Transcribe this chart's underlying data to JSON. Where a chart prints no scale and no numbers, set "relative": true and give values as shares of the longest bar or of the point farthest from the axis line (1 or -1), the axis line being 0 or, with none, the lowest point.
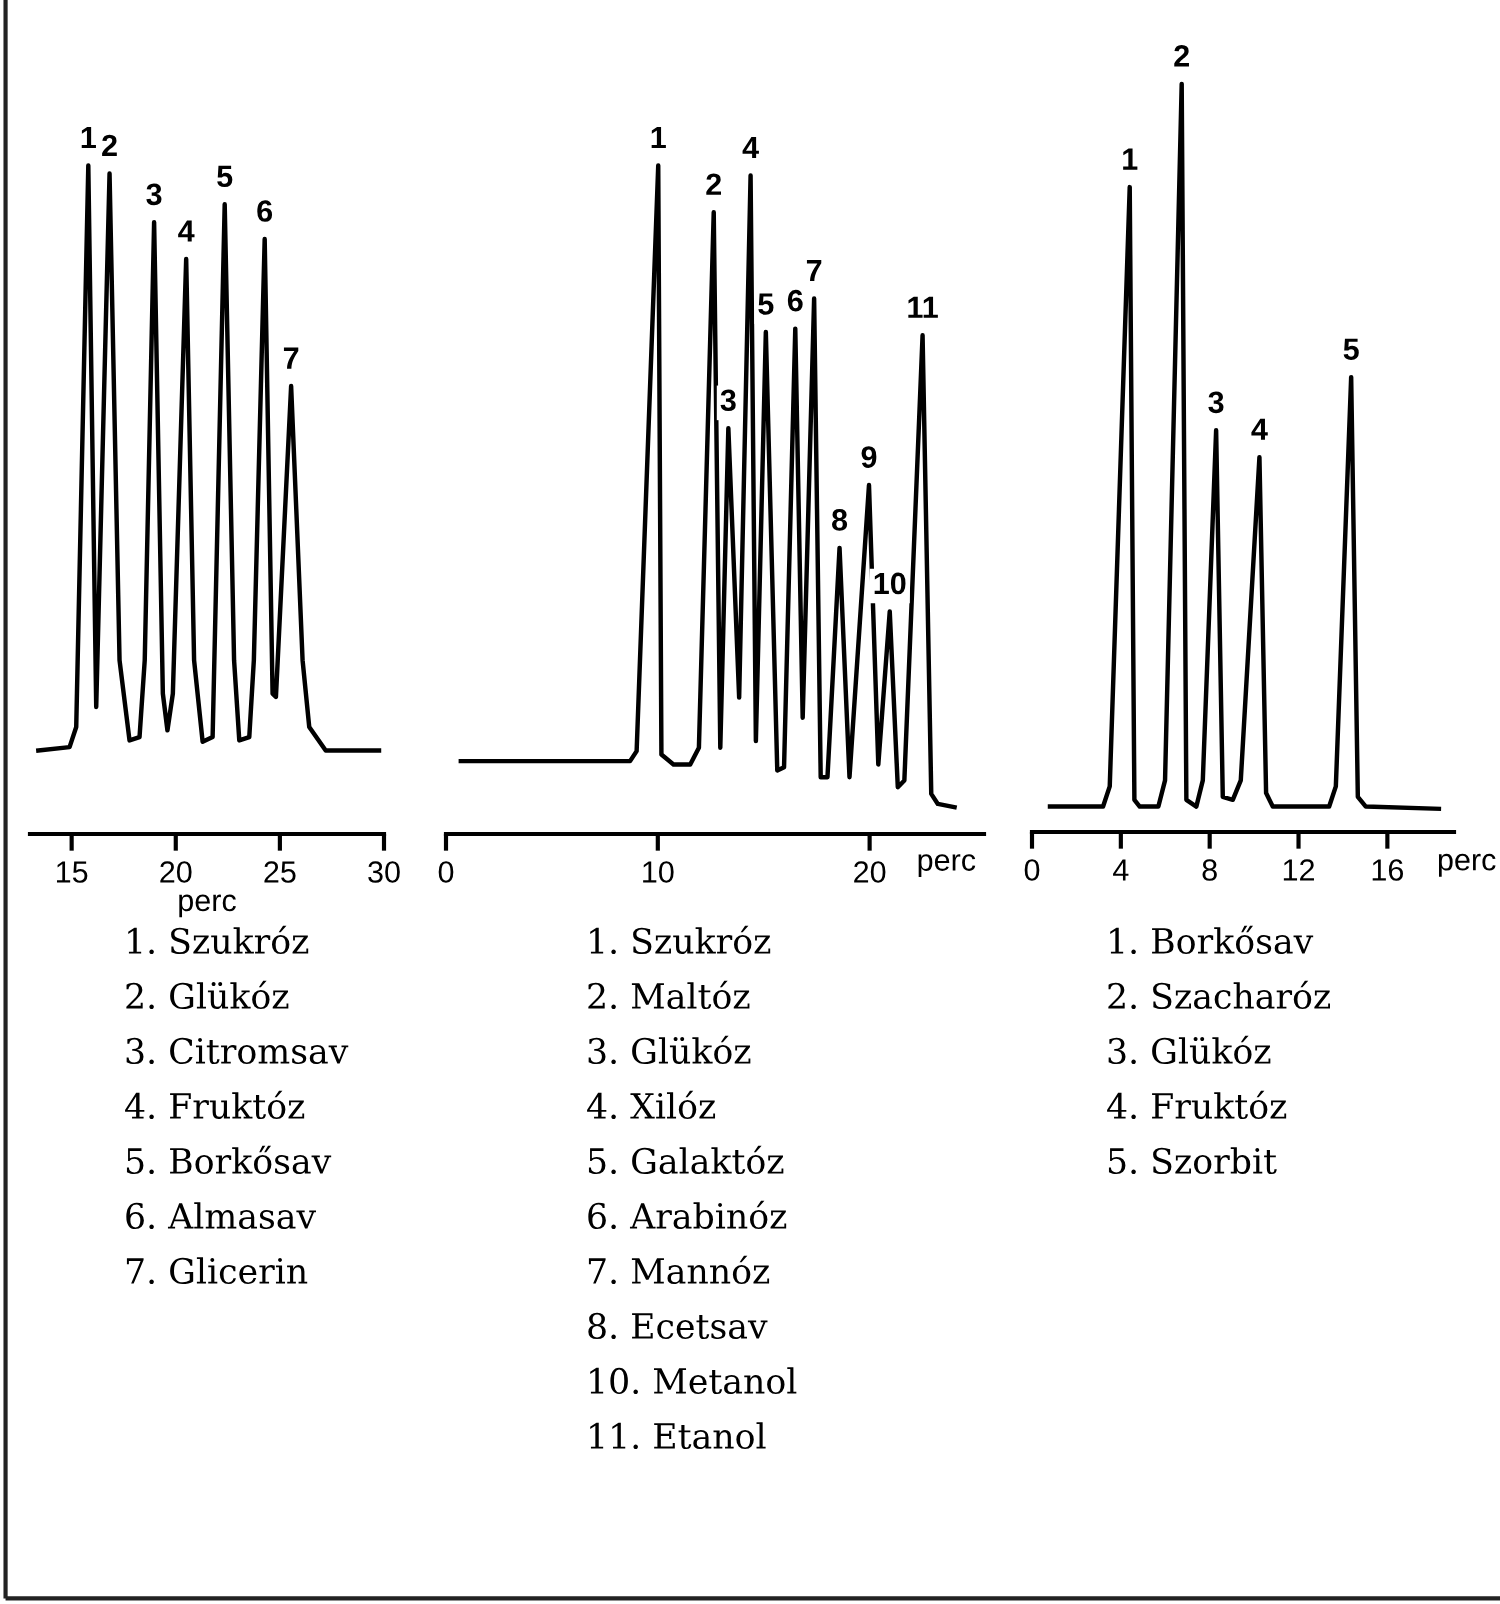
{
  "chart_data": [
    {
      "type": "line",
      "relative": true,
      "xlabel": "perc",
      "xlim": [
        13,
        30
      ],
      "xticks": [
        15,
        20,
        25,
        30
      ],
      "series": [
        {
          "color": "#000000",
          "x": [
            13.4,
            14.9,
            15.22,
            15.8,
            16.18,
            16.82,
            17.3,
            17.78,
            18.26,
            18.51,
            18.96,
            19.38,
            19.6,
            19.86,
            20.5,
            20.88,
            21.29,
            21.77,
            22.35,
            22.8,
            23.05,
            23.53,
            23.75,
            24.27,
            24.65,
            24.81,
            25.54,
            26.09,
            26.41,
            27.2,
            29.76
          ],
          "values": [
            0.125,
            0.13,
            0.16,
            1.0,
            0.19,
            0.988,
            0.26,
            0.14,
            0.145,
            0.26,
            0.915,
            0.21,
            0.155,
            0.21,
            0.86,
            0.26,
            0.138,
            0.145,
            0.942,
            0.26,
            0.14,
            0.145,
            0.26,
            0.89,
            0.21,
            0.205,
            0.67,
            0.26,
            0.16,
            0.125,
            0.125
          ]
        }
      ],
      "annotations": [
        {
          "text": "1",
          "x": 15.8,
          "y": 1.0
        },
        {
          "text": "2",
          "x": 16.82,
          "y": 0.988
        },
        {
          "text": "3",
          "x": 18.96,
          "y": 0.915
        },
        {
          "text": "4",
          "x": 20.5,
          "y": 0.86
        },
        {
          "text": "5",
          "x": 22.35,
          "y": 0.942
        },
        {
          "text": "6",
          "x": 24.27,
          "y": 0.89
        },
        {
          "text": "7",
          "x": 25.54,
          "y": 0.67
        },
        "1. Szukróz",
        "2. Glükóz",
        "3. Citromsav",
        "4. Fruktóz",
        "5. Borkősav",
        "6. Almasav",
        "7. Glicerin"
      ]
    },
    {
      "type": "line",
      "relative": true,
      "xlabel": "perc",
      "xlim": [
        0,
        25.4
      ],
      "xticks": [
        0,
        10,
        20
      ],
      "series": [
        {
          "color": "#000000",
          "x": [
            0.7,
            8.69,
            9.0,
            10.02,
            10.17,
            10.74,
            11.53,
            11.94,
            12.64,
            12.95,
            13.33,
            13.84,
            14.38,
            14.63,
            15.1,
            15.64,
            15.96,
            16.49,
            16.84,
            17.38,
            17.69,
            18.01,
            18.58,
            19.05,
            19.97,
            20.41,
            20.95,
            21.33,
            21.64,
            22.5,
            22.91,
            23.22,
            24.01
          ],
          "values": [
            0.109,
            0.109,
            0.124,
            1.0,
            0.119,
            0.104,
            0.104,
            0.129,
            0.93,
            0.129,
            0.607,
            0.204,
            0.985,
            0.139,
            0.751,
            0.095,
            0.1,
            0.756,
            0.174,
            0.801,
            0.085,
            0.085,
            0.428,
            0.085,
            0.522,
            0.104,
            0.333,
            0.07,
            0.08,
            0.746,
            0.06,
            0.045,
            0.04
          ]
        }
      ],
      "annotations": [
        {
          "text": "1",
          "x": 10.02,
          "y": 1.0
        },
        {
          "text": "2",
          "x": 12.64,
          "y": 0.93
        },
        {
          "text": "3",
          "x": 13.33,
          "y": 0.607
        },
        {
          "text": "4",
          "x": 14.38,
          "y": 0.985
        },
        {
          "text": "5",
          "x": 15.1,
          "y": 0.751
        },
        {
          "text": "6",
          "x": 16.49,
          "y": 0.756
        },
        {
          "text": "7",
          "x": 17.38,
          "y": 0.801
        },
        {
          "text": "8",
          "x": 18.58,
          "y": 0.428
        },
        {
          "text": "9",
          "x": 19.97,
          "y": 0.522
        },
        {
          "text": "10",
          "x": 20.95,
          "y": 0.333
        },
        {
          "text": "11",
          "x": 22.5,
          "y": 0.746
        },
        "1. Szukróz",
        "2. Maltóz",
        "3. Glükóz",
        "4. Xilóz",
        "5. Galaktóz",
        "6. Arabinóz",
        "7. Mannóz",
        "8. Ecetsav",
        "10. Metanol",
        "11. Etanol"
      ]
    },
    {
      "type": "line",
      "relative": true,
      "xlabel": "perc",
      "xlim": [
        0,
        19
      ],
      "xticks": [
        0,
        4,
        8,
        12,
        16
      ],
      "series": [
        {
          "color": "#000000",
          "x": [
            0.81,
            3.2,
            3.5,
            4.4,
            4.61,
            4.85,
            5.69,
            5.99,
            6.74,
            6.95,
            7.4,
            7.69,
            8.29,
            8.59,
            9.04,
            9.4,
            10.24,
            10.54,
            10.84,
            13.38,
            13.68,
            14.37,
            14.67,
            15.03,
            18.32
          ],
          "values": [
            0.034,
            0.034,
            0.061,
            0.862,
            0.043,
            0.034,
            0.034,
            0.069,
            1.0,
            0.043,
            0.034,
            0.069,
            0.537,
            0.047,
            0.043,
            0.069,
            0.501,
            0.052,
            0.034,
            0.034,
            0.061,
            0.608,
            0.047,
            0.034,
            0.031
          ]
        }
      ],
      "annotations": [
        {
          "text": "1",
          "x": 4.4,
          "y": 0.862
        },
        {
          "text": "2",
          "x": 6.74,
          "y": 1.0
        },
        {
          "text": "3",
          "x": 8.29,
          "y": 0.537
        },
        {
          "text": "4",
          "x": 10.24,
          "y": 0.501
        },
        {
          "text": "5",
          "x": 14.37,
          "y": 0.608
        },
        "1. Borkősav",
        "2. Szacharóz",
        "3. Glükóz",
        "4. Fruktóz",
        "5. Szorbit"
      ]
    }
  ]
}
